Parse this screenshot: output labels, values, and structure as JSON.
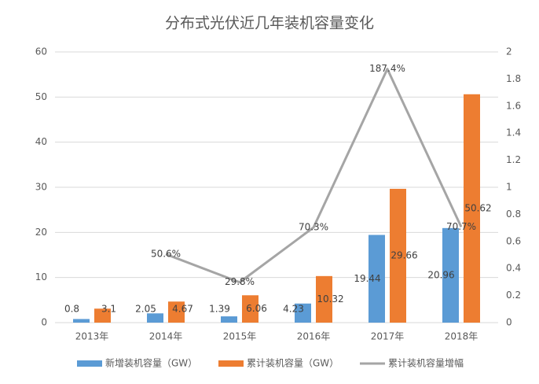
{
  "chart_data": {
    "type": "bar",
    "title": "分布式光伏近几年装机容量变化",
    "categories": [
      "2013年",
      "2014年",
      "2015年",
      "2016年",
      "2017年",
      "2018年"
    ],
    "series": [
      {
        "name": "新增装机容量（GW）",
        "color": "#5b9bd5",
        "values": [
          0.8,
          2.05,
          1.39,
          4.23,
          19.44,
          20.96
        ]
      },
      {
        "name": "累计装机容量（GW）",
        "color": "#ed7d31",
        "values": [
          3.1,
          4.67,
          6.06,
          10.32,
          29.66,
          50.62
        ]
      },
      {
        "name": "累计装机容量增幅",
        "color": "#a5a5a5",
        "type": "line",
        "axis": "y2",
        "values": [
          null,
          0.506,
          0.298,
          0.703,
          1.874,
          0.707
        ],
        "value_labels": [
          null,
          "50.6%",
          "29.8%",
          "70.3%",
          "187.4%",
          "70.7%"
        ]
      }
    ],
    "ylim": [
      0,
      60
    ],
    "yticks": [
      0,
      10,
      20,
      30,
      40,
      50,
      60
    ],
    "y2lim": [
      0,
      2
    ],
    "y2ticks": [
      0,
      0.2,
      0.4,
      0.6,
      0.8,
      1,
      1.2,
      1.4,
      1.6,
      1.8,
      2
    ],
    "grid": true,
    "legend": "bottom"
  }
}
